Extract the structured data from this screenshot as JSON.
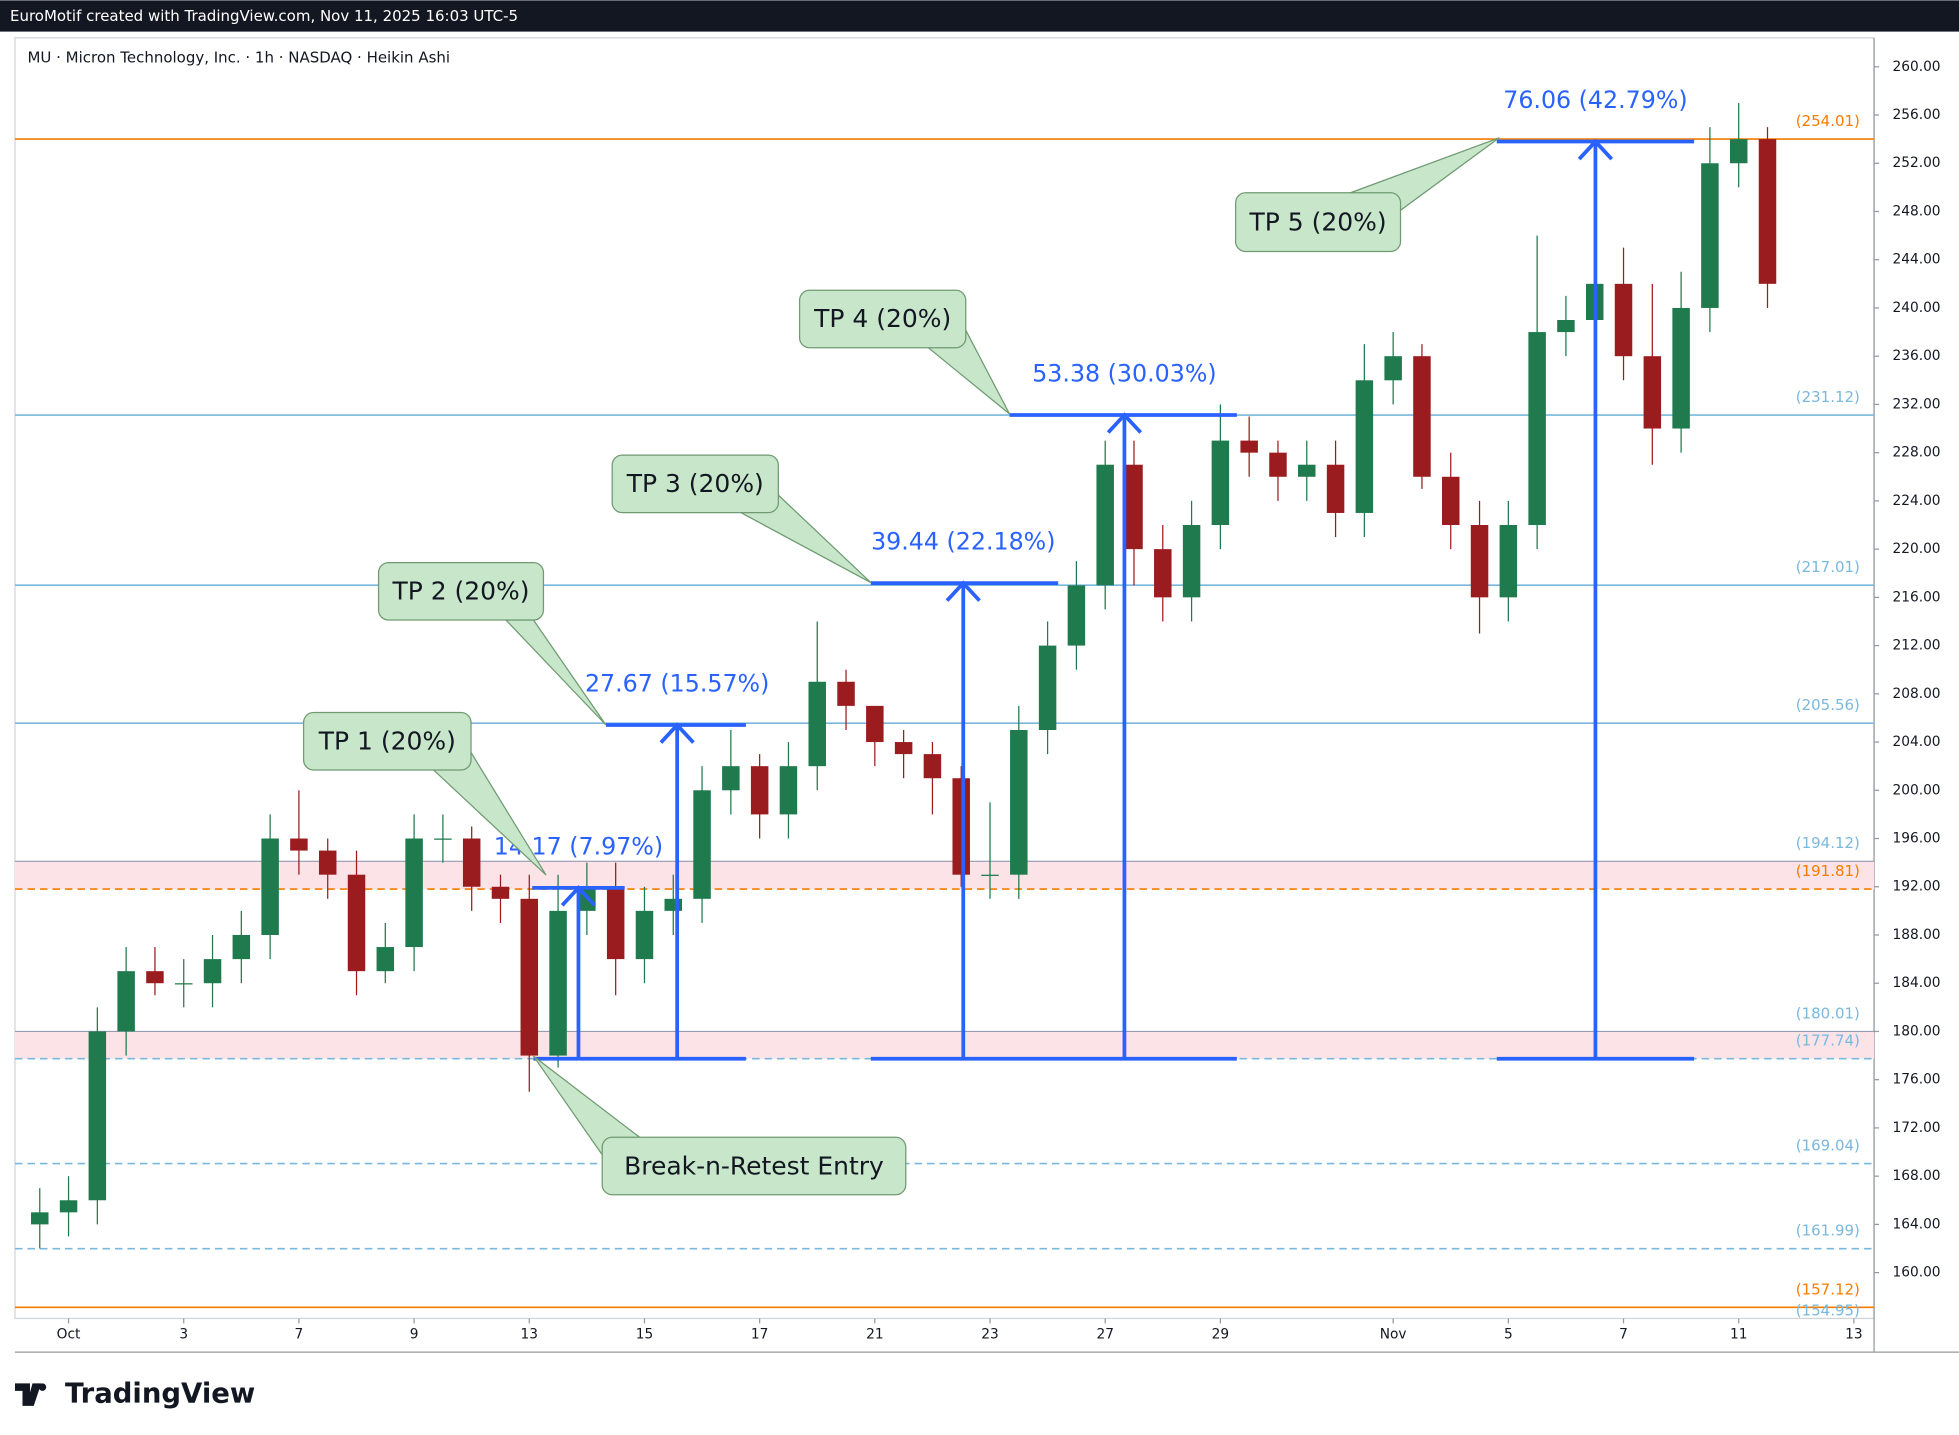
{
  "header": "EuroMotif created with TradingView.com, Nov 11, 2025 16:03 UTC-5",
  "footer": "TradingView",
  "chart_data": {
    "type": "candlestick",
    "title": "MU · Micron Technology, Inc. · 1h · NASDAQ · Heikin Ashi",
    "x": [
      -0.5,
      0,
      0.5,
      1,
      1.5,
      2,
      2.5,
      3,
      3.5,
      4,
      4.5,
      5,
      5.5,
      6,
      6.5,
      7,
      7.5,
      8,
      8.5,
      9,
      9.5,
      10,
      10.5,
      11,
      11.5,
      12,
      12.5,
      13,
      13.5,
      14,
      14.5,
      15,
      15.5,
      16,
      16.5,
      17,
      17.5,
      18,
      18.5,
      19,
      19.5,
      20,
      20.5,
      21,
      21.5,
      22,
      22.5,
      23,
      23.5,
      24,
      24.5,
      25,
      25.5,
      26,
      26.5,
      27,
      27.5,
      28,
      28.5,
      29,
      29.5
    ],
    "open": [
      164,
      165,
      166,
      180,
      185,
      184,
      184,
      186,
      188,
      196,
      195,
      193,
      185,
      187,
      196,
      196,
      192,
      191,
      178,
      190,
      192,
      186,
      190,
      191,
      200,
      202,
      198,
      202,
      209,
      207,
      204,
      203,
      201,
      193,
      193,
      205,
      212,
      217,
      227,
      220,
      216,
      222,
      229,
      228,
      226,
      227,
      223,
      234,
      236,
      226,
      222,
      216,
      222,
      238,
      239,
      242,
      236,
      230,
      240,
      252,
      254
    ],
    "high": [
      167,
      168,
      182,
      187,
      187,
      186,
      188,
      190,
      198,
      200,
      196,
      195,
      189,
      198,
      198,
      197,
      193,
      193,
      193,
      194,
      194,
      192,
      193,
      202,
      205,
      203,
      204,
      214,
      210,
      206,
      205,
      204,
      202,
      199,
      207,
      214,
      219,
      229,
      229,
      222,
      224,
      232,
      231,
      229,
      229,
      229,
      237,
      238,
      237,
      228,
      224,
      224,
      246,
      241,
      244,
      245,
      242,
      243,
      255,
      257,
      255
    ],
    "low": [
      162,
      163,
      164,
      178,
      183,
      182,
      182,
      184,
      186,
      193,
      191,
      183,
      184,
      185,
      194,
      190,
      189,
      175,
      177,
      188,
      183,
      184,
      188,
      189,
      198,
      196,
      196,
      200,
      205,
      202,
      201,
      198,
      192,
      191,
      191,
      203,
      210,
      215,
      217,
      214,
      214,
      220,
      226,
      224,
      224,
      221,
      221,
      232,
      225,
      220,
      213,
      214,
      220,
      236,
      237,
      234,
      227,
      228,
      238,
      250,
      240
    ],
    "close": [
      165,
      166,
      180,
      185,
      184,
      184,
      186,
      188,
      196,
      195,
      193,
      185,
      187,
      196,
      196,
      192,
      191,
      178,
      190,
      192,
      186,
      190,
      191,
      200,
      202,
      198,
      202,
      209,
      207,
      204,
      203,
      201,
      193,
      193,
      205,
      212,
      217,
      227,
      220,
      216,
      222,
      229,
      228,
      226,
      227,
      223,
      234,
      236,
      226,
      222,
      216,
      222,
      238,
      239,
      242,
      236,
      230,
      240,
      252,
      254,
      242
    ],
    "up_color": "#1f7a4d",
    "down_color": "#9b1c1f",
    "xlim": [
      -0.93,
      31.35
    ],
    "xticks": [
      {
        "value": 0,
        "label": "Oct"
      },
      {
        "value": 2,
        "label": "3"
      },
      {
        "value": 4,
        "label": "7"
      },
      {
        "value": 6,
        "label": "9"
      },
      {
        "value": 8,
        "label": "13"
      },
      {
        "value": 10,
        "label": "15"
      },
      {
        "value": 12,
        "label": "17"
      },
      {
        "value": 14,
        "label": "21"
      },
      {
        "value": 16,
        "label": "23"
      },
      {
        "value": 18,
        "label": "27"
      },
      {
        "value": 20,
        "label": "29"
      },
      {
        "value": 23,
        "label": "Nov"
      },
      {
        "value": 25,
        "label": "5"
      },
      {
        "value": 27,
        "label": "7"
      },
      {
        "value": 29,
        "label": "11"
      },
      {
        "value": 31,
        "label": "13"
      }
    ],
    "ylim": [
      156.2,
      262.4
    ],
    "yticks": [
      {
        "value": 160,
        "label": "160.00"
      },
      {
        "value": 164,
        "label": "164.00"
      },
      {
        "value": 168,
        "label": "168.00"
      },
      {
        "value": 172,
        "label": "172.00"
      },
      {
        "value": 176,
        "label": "176.00"
      },
      {
        "value": 180,
        "label": "180.00"
      },
      {
        "value": 184,
        "label": "184.00"
      },
      {
        "value": 188,
        "label": "188.00"
      },
      {
        "value": 192,
        "label": "192.00"
      },
      {
        "value": 196,
        "label": "196.00"
      },
      {
        "value": 200,
        "label": "200.00"
      },
      {
        "value": 204,
        "label": "204.00"
      },
      {
        "value": 208,
        "label": "208.00"
      },
      {
        "value": 212,
        "label": "212.00"
      },
      {
        "value": 216,
        "label": "216.00"
      },
      {
        "value": 220,
        "label": "220.00"
      },
      {
        "value": 224,
        "label": "224.00"
      },
      {
        "value": 228,
        "label": "228.00"
      },
      {
        "value": 232,
        "label": "232.00"
      },
      {
        "value": 236,
        "label": "236.00"
      },
      {
        "value": 240,
        "label": "240.00"
      },
      {
        "value": 244,
        "label": "244.00"
      },
      {
        "value": 248,
        "label": "248.00"
      },
      {
        "value": 252,
        "label": "252.00"
      },
      {
        "value": 256,
        "label": "256.00"
      },
      {
        "value": 260,
        "label": "260.00"
      }
    ],
    "zones": [
      {
        "high": 194.12,
        "low": 191.81,
        "color": "#fbe3e8"
      },
      {
        "high": 180.01,
        "low": 177.74,
        "color": "#fbe3e8"
      }
    ],
    "levels": [
      {
        "value": 254.01,
        "label": "(254.01)",
        "color": "#f57c00",
        "style": "solid"
      },
      {
        "value": 231.12,
        "label": "(231.12)",
        "color": "#7ab8de",
        "style": "solid"
      },
      {
        "value": 217.01,
        "label": "(217.01)",
        "color": "#7ab8de",
        "style": "solid"
      },
      {
        "value": 205.56,
        "label": "(205.56)",
        "color": "#7ab8de",
        "style": "solid"
      },
      {
        "value": 194.12,
        "label": "(194.12)",
        "color": "#7ab8de",
        "style": "thin"
      },
      {
        "value": 191.81,
        "label": "(191.81)",
        "color": "#f57c00",
        "style": "dashed"
      },
      {
        "value": 180.01,
        "label": "(180.01)",
        "color": "#7ab8de",
        "style": "thin"
      },
      {
        "value": 177.74,
        "label": "(177.74)",
        "color": "#7ab8de",
        "style": "dashed"
      },
      {
        "value": 169.04,
        "label": "(169.04)",
        "color": "#7ab8de",
        "style": "dashed"
      },
      {
        "value": 161.99,
        "label": "(161.99)",
        "color": "#7ab8de",
        "style": "dashed"
      },
      {
        "value": 157.12,
        "label": "(157.12)",
        "color": "#f57c00",
        "style": "solid"
      },
      {
        "value": 154.95,
        "label": "(154.95)",
        "color": "#7ab8de",
        "style": "solid"
      }
    ],
    "measure_base": 177.74,
    "measure_color": "#2962ff",
    "measures": [
      {
        "change": 14.17,
        "label": "14.17 (7.97%)"
      },
      {
        "change": 27.67,
        "label": "27.67 (15.57%)"
      },
      {
        "change": 39.44,
        "label": "39.44 (22.18%)"
      },
      {
        "change": 53.38,
        "label": "53.38 (30.03%)"
      },
      {
        "change": 76.06,
        "label": "76.06 (42.79%)"
      }
    ],
    "callouts": [
      "TP 1 (20%)",
      "TP 2 (20%)",
      "TP 3 (20%)",
      "TP 4 (20%)",
      "TP 5 (20%)",
      "Break-n-Retest Entry"
    ]
  }
}
